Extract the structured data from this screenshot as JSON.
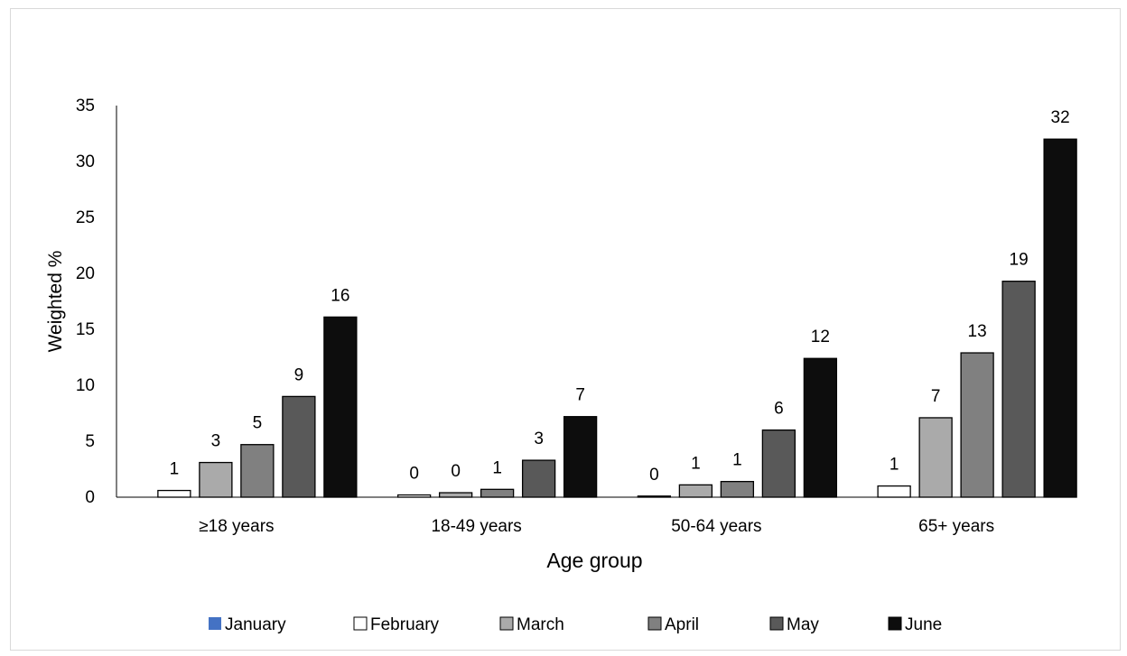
{
  "chart_data": {
    "type": "bar",
    "title": "",
    "xlabel": "Age group",
    "ylabel": "Weighted %",
    "ylim": [
      0,
      35
    ],
    "yticks": [
      0,
      5,
      10,
      15,
      20,
      25,
      30,
      35
    ],
    "grid": false,
    "legend_position": "bottom",
    "categories": [
      "≥18 years",
      "18-49 years",
      "50-64 years",
      "65+ years"
    ],
    "series": [
      {
        "name": "January",
        "color": "#4472c4",
        "values": [
          0,
          0,
          0,
          0
        ],
        "labels": [
          "",
          "",
          "",
          ""
        ]
      },
      {
        "name": "February",
        "color": "#ffffff",
        "values": [
          0.6,
          0.2,
          0.1,
          1.0
        ],
        "labels": [
          "1",
          "0",
          "0",
          "1"
        ]
      },
      {
        "name": "March",
        "color": "#aaaaaa",
        "values": [
          3.1,
          0.4,
          1.1,
          7.1
        ],
        "labels": [
          "3",
          "0",
          "1",
          "7"
        ]
      },
      {
        "name": "April",
        "color": "#808080",
        "values": [
          4.7,
          0.7,
          1.4,
          12.9
        ],
        "labels": [
          "5",
          "1",
          "1",
          "13"
        ]
      },
      {
        "name": "May",
        "color": "#595959",
        "values": [
          9.0,
          3.3,
          6.0,
          19.3
        ],
        "labels": [
          "9",
          "3",
          "6",
          "19"
        ]
      },
      {
        "name": "June",
        "color": "#0d0d0d",
        "values": [
          16.1,
          7.2,
          12.4,
          32.0
        ],
        "labels": [
          "16",
          "7",
          "12",
          "32"
        ]
      }
    ]
  }
}
